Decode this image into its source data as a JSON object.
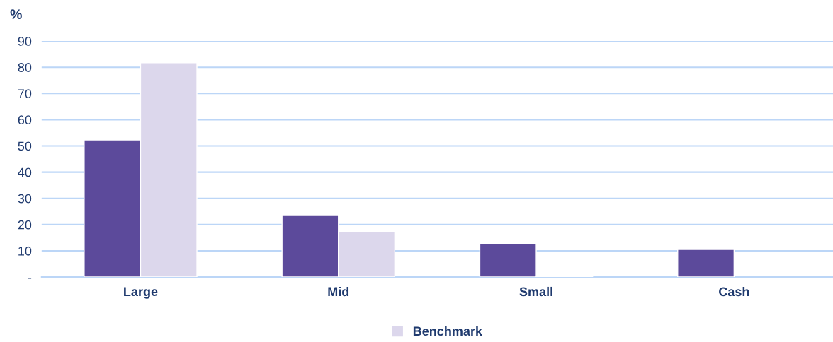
{
  "chart_data": {
    "type": "bar",
    "ylabel": "%",
    "categories": [
      "Large",
      "Mid",
      "Small",
      "Cash"
    ],
    "series": [
      {
        "color": "#5c4a9b",
        "values": [
          52.3,
          23.7,
          12.7,
          10.5
        ]
      },
      {
        "name": "Benchmark",
        "color": "#dcd7ec",
        "values": [
          81.7,
          17.2,
          0.3,
          null
        ]
      }
    ],
    "ylim": [
      0,
      90
    ],
    "yticks": [
      {
        "value": 0,
        "label": "-"
      },
      10,
      20,
      30,
      40,
      50,
      60,
      70,
      80,
      90
    ],
    "grid": "y",
    "legend": "bottom"
  }
}
